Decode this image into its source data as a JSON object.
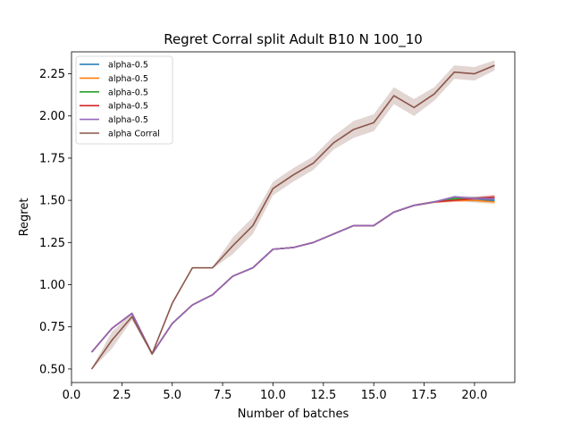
{
  "chart_data": {
    "type": "line",
    "title": "Regret Corral split Adult B10 N 100_10",
    "xlabel": "Number of batches",
    "ylabel": "Regret",
    "xlim": [
      0,
      22
    ],
    "ylim": [
      0.42,
      2.38
    ],
    "xticks": [
      0,
      2.5,
      5,
      7.5,
      10,
      12.5,
      15,
      17.5,
      20
    ],
    "xtick_labels": [
      "0.0",
      "2.5",
      "5.0",
      "7.5",
      "10.0",
      "12.5",
      "15.0",
      "17.5",
      "20.0"
    ],
    "yticks": [
      0.5,
      0.75,
      1.0,
      1.25,
      1.5,
      1.75,
      2.0,
      2.25
    ],
    "ytick_labels": [
      "0.50",
      "0.75",
      "1.00",
      "1.25",
      "1.50",
      "1.75",
      "2.00",
      "2.25"
    ],
    "grid": false,
    "legend_position": "top-left",
    "x": [
      1,
      2,
      3,
      4,
      5,
      6,
      7,
      8,
      9,
      10,
      11,
      12,
      13,
      14,
      15,
      16,
      17,
      18,
      19,
      20,
      21
    ],
    "series": [
      {
        "name": "alpha-0.5",
        "color": "#1f77b4",
        "values": [
          0.6,
          0.74,
          0.83,
          0.59,
          0.77,
          0.88,
          0.94,
          1.05,
          1.1,
          1.21,
          1.22,
          1.25,
          1.3,
          1.35,
          1.35,
          1.43,
          1.47,
          1.49,
          1.51,
          1.5,
          1.5
        ],
        "band": [
          0.002,
          0.003,
          0.003,
          0.003,
          0.003,
          0.003,
          0.003,
          0.004,
          0.004,
          0.004,
          0.004,
          0.004,
          0.004,
          0.005,
          0.005,
          0.005,
          0.005,
          0.006,
          0.01,
          0.012,
          0.014
        ]
      },
      {
        "name": "alpha-0.5",
        "color": "#ff7f0e",
        "values": [
          0.6,
          0.74,
          0.83,
          0.59,
          0.77,
          0.88,
          0.94,
          1.05,
          1.1,
          1.21,
          1.22,
          1.25,
          1.3,
          1.35,
          1.35,
          1.43,
          1.47,
          1.49,
          1.5,
          1.5,
          1.49
        ],
        "band": [
          0.002,
          0.003,
          0.003,
          0.003,
          0.003,
          0.003,
          0.003,
          0.004,
          0.004,
          0.004,
          0.004,
          0.004,
          0.004,
          0.005,
          0.005,
          0.005,
          0.005,
          0.006,
          0.01,
          0.012,
          0.014
        ]
      },
      {
        "name": "alpha-0.5",
        "color": "#2ca02c",
        "values": [
          0.6,
          0.74,
          0.83,
          0.59,
          0.77,
          0.88,
          0.94,
          1.05,
          1.1,
          1.21,
          1.22,
          1.25,
          1.3,
          1.35,
          1.35,
          1.43,
          1.47,
          1.49,
          1.51,
          1.51,
          1.51
        ],
        "band": [
          0.002,
          0.003,
          0.003,
          0.003,
          0.003,
          0.003,
          0.003,
          0.004,
          0.004,
          0.004,
          0.004,
          0.004,
          0.004,
          0.005,
          0.005,
          0.005,
          0.005,
          0.006,
          0.01,
          0.012,
          0.014
        ]
      },
      {
        "name": "alpha-0.5",
        "color": "#d62728",
        "values": [
          0.6,
          0.74,
          0.83,
          0.59,
          0.77,
          0.88,
          0.94,
          1.05,
          1.1,
          1.21,
          1.22,
          1.25,
          1.3,
          1.35,
          1.35,
          1.43,
          1.47,
          1.49,
          1.5,
          1.51,
          1.52
        ],
        "band": [
          0.002,
          0.003,
          0.003,
          0.003,
          0.003,
          0.003,
          0.003,
          0.004,
          0.004,
          0.004,
          0.004,
          0.004,
          0.004,
          0.005,
          0.005,
          0.005,
          0.005,
          0.006,
          0.01,
          0.012,
          0.014
        ]
      },
      {
        "name": "alpha-0.5",
        "color": "#9467bd",
        "values": [
          0.6,
          0.74,
          0.83,
          0.59,
          0.77,
          0.88,
          0.94,
          1.05,
          1.1,
          1.21,
          1.22,
          1.25,
          1.3,
          1.35,
          1.35,
          1.43,
          1.47,
          1.49,
          1.52,
          1.51,
          1.51
        ],
        "band": [
          0.002,
          0.003,
          0.003,
          0.003,
          0.003,
          0.003,
          0.003,
          0.004,
          0.004,
          0.004,
          0.004,
          0.004,
          0.004,
          0.005,
          0.005,
          0.005,
          0.005,
          0.006,
          0.01,
          0.012,
          0.014
        ]
      },
      {
        "name": "alpha Corral",
        "color": "#8c564b",
        "values": [
          0.5,
          0.67,
          0.81,
          0.59,
          0.89,
          1.1,
          1.1,
          1.23,
          1.35,
          1.57,
          1.65,
          1.72,
          1.84,
          1.92,
          1.96,
          2.12,
          2.05,
          2.13,
          2.26,
          2.25,
          2.3
        ],
        "band": [
          0.004,
          0.05,
          0.02,
          0.01,
          0.01,
          0.005,
          0.005,
          0.05,
          0.05,
          0.04,
          0.04,
          0.04,
          0.04,
          0.05,
          0.05,
          0.05,
          0.05,
          0.04,
          0.04,
          0.04,
          0.03
        ]
      }
    ]
  }
}
